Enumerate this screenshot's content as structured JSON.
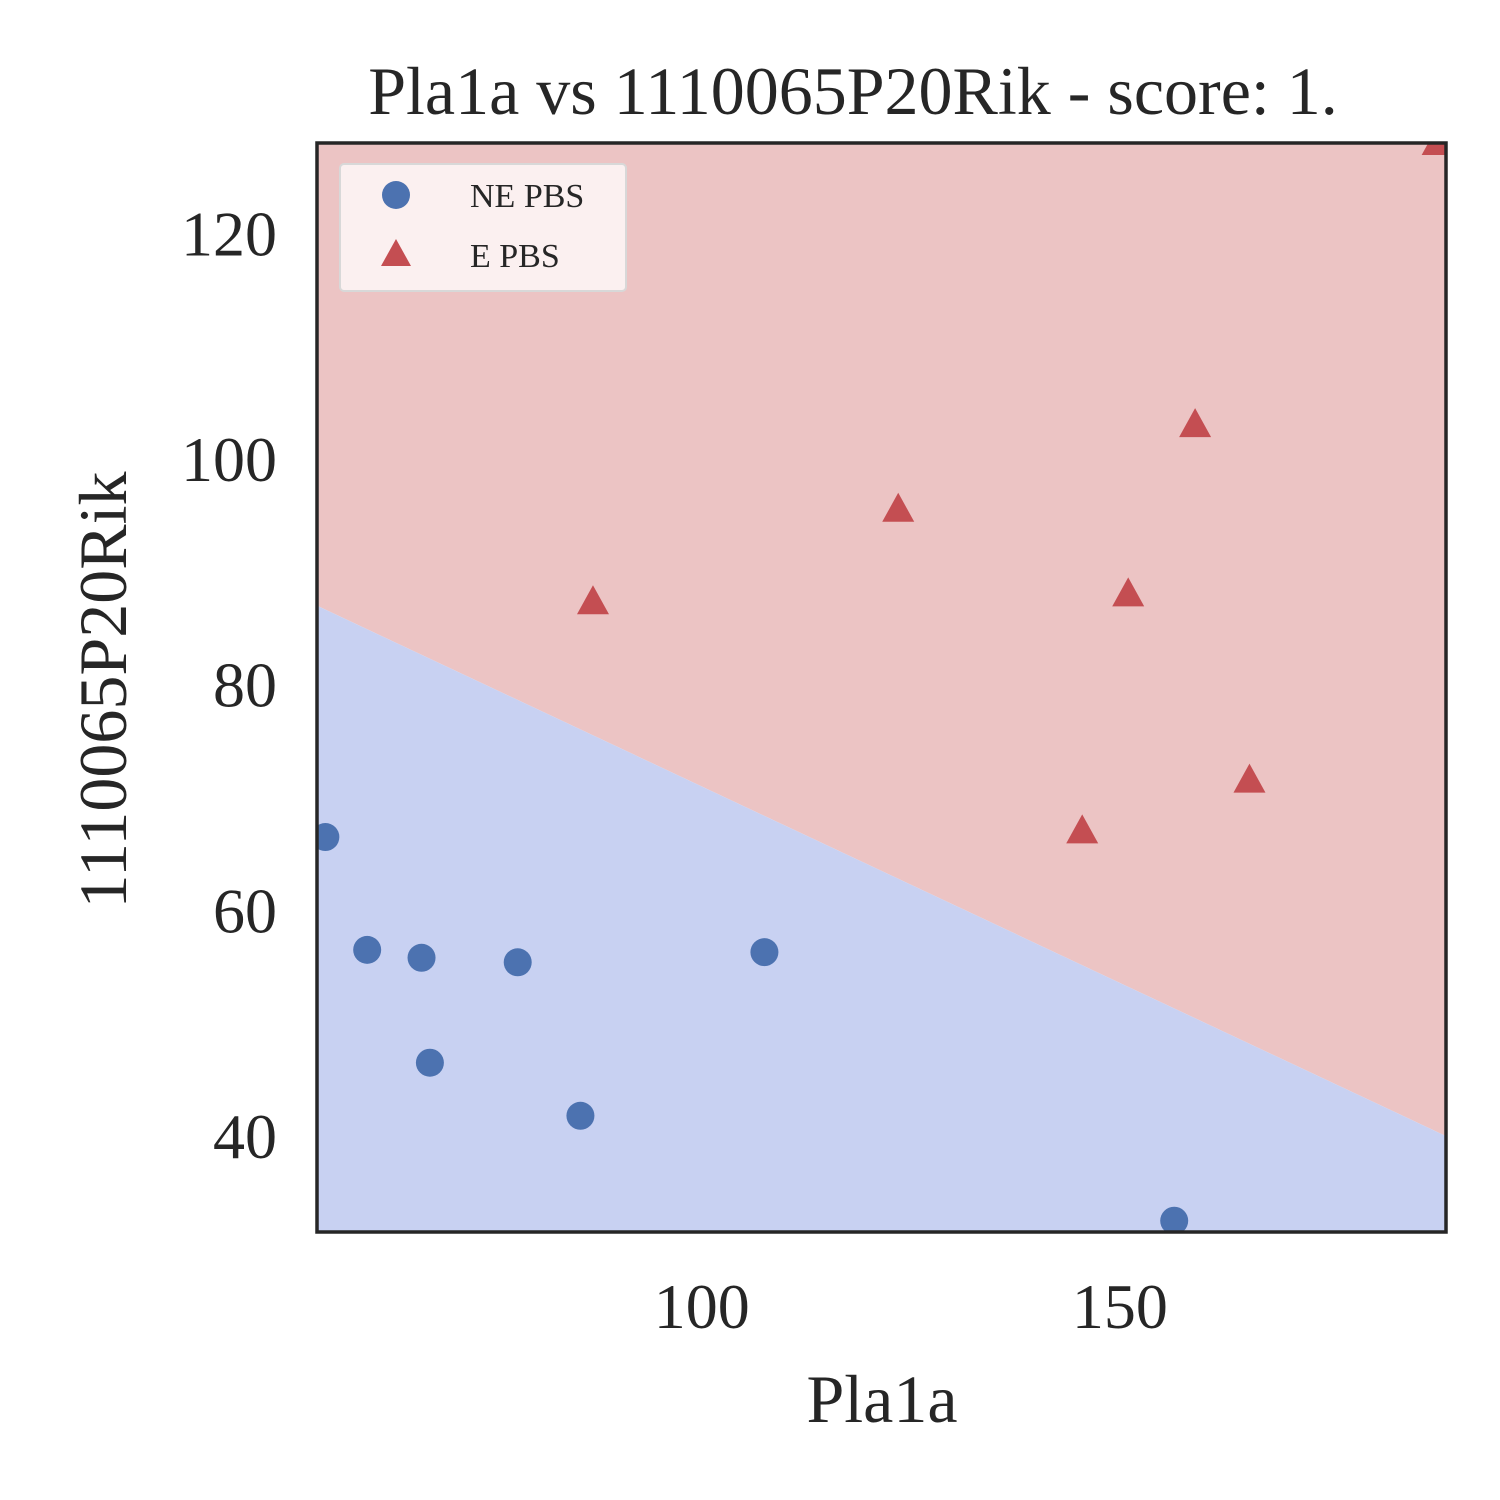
{
  "chart_data": {
    "type": "scatter",
    "title": "Pla1a vs 1110065P20Rik - score: 1.",
    "xlabel": "Pla1a",
    "ylabel": "1110065P20Rik",
    "xlim": [
      54,
      189
    ],
    "ylim": [
      31.5,
      128
    ],
    "xticks": [
      100,
      150
    ],
    "yticks": [
      40,
      60,
      80,
      100,
      120
    ],
    "grid": false,
    "legend_placement": "top-left",
    "decision_boundary": {
      "x": [
        54,
        189
      ],
      "y": [
        87.0,
        40.0
      ],
      "below_class": "NE PBS",
      "above_class": "E PBS"
    },
    "series": [
      {
        "name": "NE PBS",
        "marker": "circle",
        "color": "#4c72b0",
        "points": [
          {
            "x": 55,
            "y": 66.5
          },
          {
            "x": 60,
            "y": 56.5
          },
          {
            "x": 66.5,
            "y": 55.8
          },
          {
            "x": 67.5,
            "y": 46.5
          },
          {
            "x": 78,
            "y": 55.4
          },
          {
            "x": 85.5,
            "y": 41.8
          },
          {
            "x": 107.5,
            "y": 56.3
          },
          {
            "x": 156.5,
            "y": 32.5
          }
        ]
      },
      {
        "name": "E PBS",
        "marker": "triangle",
        "color": "#c44e52",
        "points": [
          {
            "x": 87,
            "y": 87.3
          },
          {
            "x": 123.5,
            "y": 95.5
          },
          {
            "x": 145.5,
            "y": 67.0
          },
          {
            "x": 151,
            "y": 88.0
          },
          {
            "x": 159,
            "y": 103.0
          },
          {
            "x": 165.5,
            "y": 71.5
          },
          {
            "x": 188,
            "y": 128.0
          }
        ]
      }
    ]
  },
  "colors": {
    "region_ne": "#c8d1f2",
    "region_e": "#ecc4c4",
    "axes": "#262626"
  }
}
